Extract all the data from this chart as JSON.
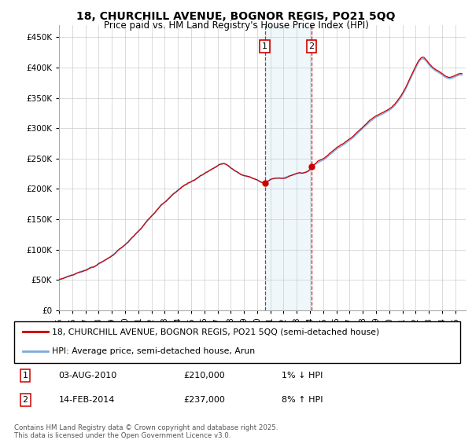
{
  "title": "18, CHURCHILL AVENUE, BOGNOR REGIS, PO21 5QQ",
  "subtitle": "Price paid vs. HM Land Registry's House Price Index (HPI)",
  "ylabel_ticks": [
    "£0",
    "£50K",
    "£100K",
    "£150K",
    "£200K",
    "£250K",
    "£300K",
    "£350K",
    "£400K",
    "£450K"
  ],
  "ylabel_values": [
    0,
    50000,
    100000,
    150000,
    200000,
    250000,
    300000,
    350000,
    400000,
    450000
  ],
  "ylim": [
    0,
    470000
  ],
  "xlim_start": 1995.0,
  "xlim_end": 2025.8,
  "hpi_color": "#7aabdc",
  "price_color": "#cc0000",
  "sale1_date": 2010.58,
  "sale1_price": 210000,
  "sale2_date": 2014.12,
  "sale2_price": 237000,
  "sale1_label": "1",
  "sale2_label": "2",
  "legend_line1": "18, CHURCHILL AVENUE, BOGNOR REGIS, PO21 5QQ (semi-detached house)",
  "legend_line2": "HPI: Average price, semi-detached house, Arun",
  "table_row1": [
    "1",
    "03-AUG-2010",
    "£210,000",
    "1% ↓ HPI"
  ],
  "table_row2": [
    "2",
    "14-FEB-2014",
    "£237,000",
    "8% ↑ HPI"
  ],
  "footer": "Contains HM Land Registry data © Crown copyright and database right 2025.\nThis data is licensed under the Open Government Licence v3.0.",
  "background_color": "#ffffff",
  "grid_color": "#cccccc"
}
